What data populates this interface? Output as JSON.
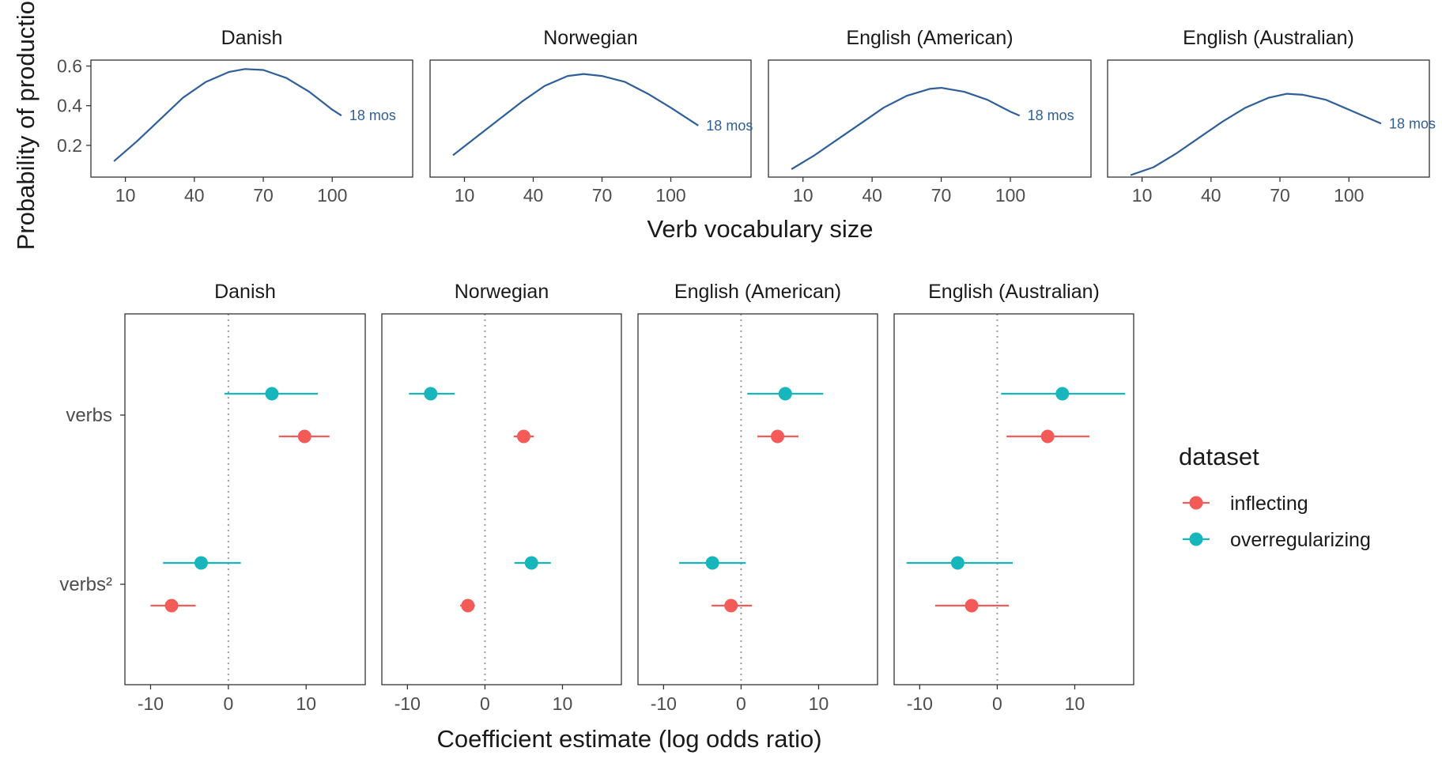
{
  "chart_data": [
    {
      "type": "line",
      "facets": [
        "Danish",
        "Norwegian",
        "English (American)",
        "English (Australian)"
      ],
      "xlabel": "Verb vocabulary size",
      "ylabel": "Probability of production",
      "x_ticks": [
        10,
        40,
        70,
        100
      ],
      "y_ticks": [
        0.2,
        0.4,
        0.6
      ],
      "xlim": [
        -5,
        135
      ],
      "ylim": [
        0.04,
        0.63
      ],
      "line_color": "#2f5f98",
      "line_label": "18 mos",
      "series": [
        {
          "facet": "Danish",
          "x": [
            5,
            15,
            25,
            35,
            45,
            55,
            62,
            70,
            80,
            90,
            100,
            104
          ],
          "y": [
            0.12,
            0.22,
            0.33,
            0.44,
            0.52,
            0.57,
            0.585,
            0.58,
            0.54,
            0.47,
            0.38,
            0.35
          ]
        },
        {
          "facet": "Norwegian",
          "x": [
            5,
            15,
            25,
            35,
            45,
            55,
            62,
            70,
            80,
            90,
            100,
            112
          ],
          "y": [
            0.15,
            0.24,
            0.33,
            0.42,
            0.5,
            0.55,
            0.56,
            0.55,
            0.52,
            0.46,
            0.39,
            0.3
          ]
        },
        {
          "facet": "English (American)",
          "x": [
            5,
            15,
            25,
            35,
            45,
            55,
            65,
            70,
            80,
            90,
            100,
            104
          ],
          "y": [
            0.08,
            0.15,
            0.23,
            0.31,
            0.39,
            0.45,
            0.485,
            0.49,
            0.47,
            0.43,
            0.37,
            0.35
          ]
        },
        {
          "facet": "English (Australian)",
          "x": [
            5,
            15,
            25,
            35,
            45,
            55,
            65,
            73,
            80,
            90,
            100,
            114
          ],
          "y": [
            0.05,
            0.09,
            0.16,
            0.24,
            0.32,
            0.39,
            0.44,
            0.46,
            0.455,
            0.43,
            0.38,
            0.31
          ]
        }
      ]
    },
    {
      "type": "scatter",
      "subtype": "coefficient-plot",
      "facets": [
        "Danish",
        "Norwegian",
        "English (American)",
        "English (Australian)"
      ],
      "xlabel": "Coefficient estimate (log odds ratio)",
      "categories": [
        "verbs",
        "verbs²"
      ],
      "x_ticks": [
        -10,
        0,
        10
      ],
      "xlim": [
        -13.3,
        17.6
      ],
      "reference_line": 0,
      "legend": {
        "title": "dataset",
        "position": "right"
      },
      "series": [
        {
          "name": "inflecting",
          "color": "#f25b57",
          "points": [
            {
              "facet": "Danish",
              "term": "verbs",
              "estimate": 9.8,
              "low": 6.5,
              "high": 13.0
            },
            {
              "facet": "Danish",
              "term": "verbs²",
              "estimate": -7.3,
              "low": -10.0,
              "high": -4.2
            },
            {
              "facet": "Norwegian",
              "term": "verbs",
              "estimate": 5.0,
              "low": 3.7,
              "high": 6.3
            },
            {
              "facet": "Norwegian",
              "term": "verbs²",
              "estimate": -2.2,
              "low": -3.2,
              "high": -1.3
            },
            {
              "facet": "English (American)",
              "term": "verbs",
              "estimate": 4.7,
              "low": 2.1,
              "high": 7.4
            },
            {
              "facet": "English (American)",
              "term": "verbs²",
              "estimate": -1.3,
              "low": -3.8,
              "high": 1.4
            },
            {
              "facet": "English (Australian)",
              "term": "verbs",
              "estimate": 6.5,
              "low": 1.2,
              "high": 11.9
            },
            {
              "facet": "English (Australian)",
              "term": "verbs²",
              "estimate": -3.3,
              "low": -8.0,
              "high": 1.5
            }
          ]
        },
        {
          "name": "overregularizing",
          "color": "#17b5bc",
          "points": [
            {
              "facet": "Danish",
              "term": "verbs",
              "estimate": 5.6,
              "low": -0.5,
              "high": 11.5
            },
            {
              "facet": "Danish",
              "term": "verbs²",
              "estimate": -3.5,
              "low": -8.4,
              "high": 1.6
            },
            {
              "facet": "Norwegian",
              "term": "verbs",
              "estimate": -7.0,
              "low": -9.8,
              "high": -3.9
            },
            {
              "facet": "Norwegian",
              "term": "verbs²",
              "estimate": 6.0,
              "low": 3.8,
              "high": 8.5
            },
            {
              "facet": "English (American)",
              "term": "verbs",
              "estimate": 5.7,
              "low": 0.8,
              "high": 10.6
            },
            {
              "facet": "English (American)",
              "term": "verbs²",
              "estimate": -3.7,
              "low": -8.0,
              "high": 0.6
            },
            {
              "facet": "English (Australian)",
              "term": "verbs",
              "estimate": 8.4,
              "low": 0.5,
              "high": 16.5
            },
            {
              "facet": "English (Australian)",
              "term": "verbs²",
              "estimate": -5.1,
              "low": -11.7,
              "high": 2.0
            }
          ]
        }
      ]
    }
  ]
}
